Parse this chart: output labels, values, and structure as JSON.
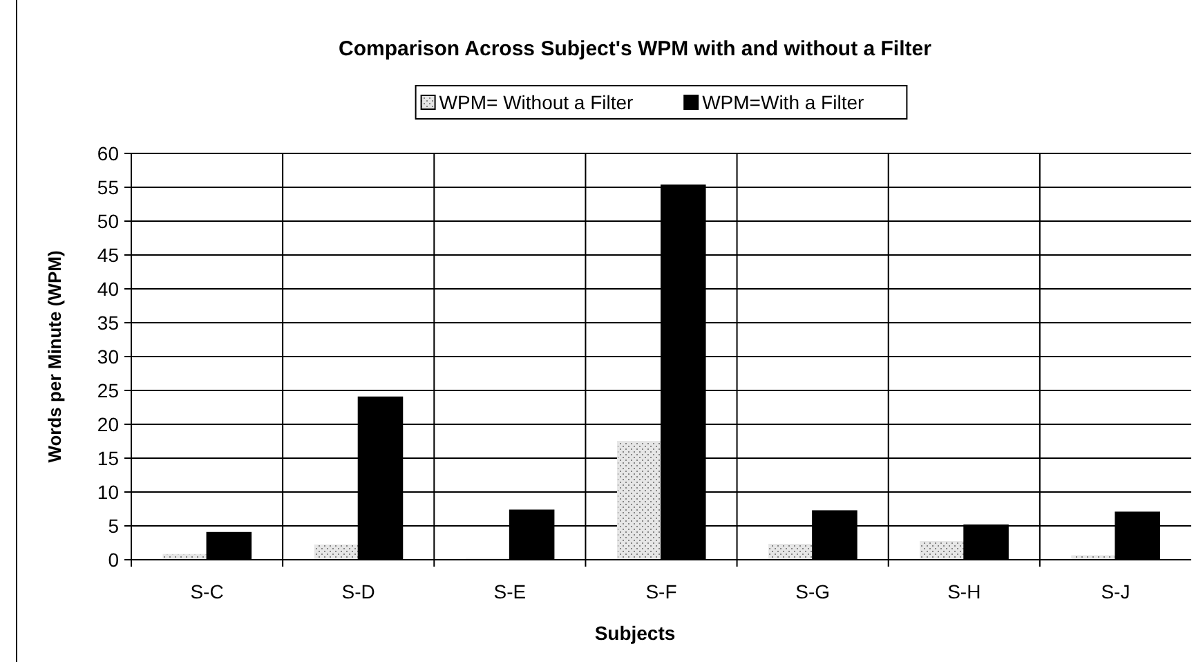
{
  "chart_data": {
    "type": "bar",
    "title": "Comparison Across Subject's WPM with and without a Filter",
    "xlabel": "Subjects",
    "ylabel": "Words per Minute (WPM)",
    "categories": [
      "S-C",
      "S-D",
      "S-E",
      "S-F",
      "S-G",
      "S-H",
      "S-J"
    ],
    "series": [
      {
        "name": "WPM= Without a Filter",
        "color": "#e6e6e6",
        "values": [
          0.8,
          2.2,
          0.2,
          17.5,
          2.3,
          2.7,
          0.6
        ]
      },
      {
        "name": "WPM=With a Filter",
        "color": "#000000",
        "values": [
          4.0,
          24,
          7.3,
          55.3,
          7.2,
          5.1,
          7.0
        ]
      }
    ],
    "ylim": [
      0,
      60
    ],
    "yticks": [
      0,
      5,
      10,
      15,
      20,
      25,
      30,
      35,
      40,
      45,
      50,
      55,
      60
    ],
    "grid": true,
    "legend": "top"
  }
}
